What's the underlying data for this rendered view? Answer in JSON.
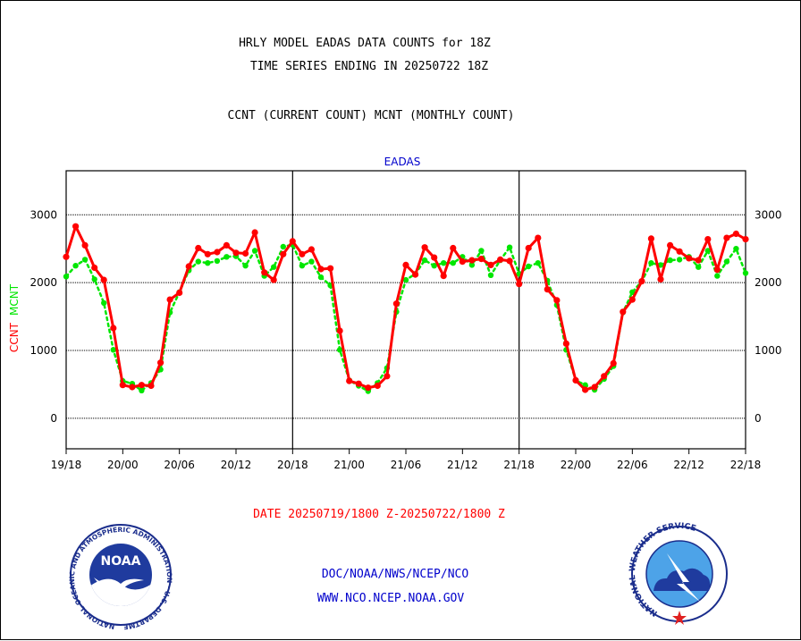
{
  "header": {
    "title_line1": "HRLY MODEL EADAS DATA COUNTS for 18Z",
    "title_line2": "TIME SERIES ENDING IN 20250722 18Z",
    "series_line": "CCNT (CURRENT COUNT) MCNT (MONTHLY COUNT)"
  },
  "footer": {
    "date_range": "DATE 20250719/1800 Z-20250722/1800 Z",
    "org_line": "DOC/NOAA/NWS/NCEP/NCO",
    "url_line": "WWW.NCO.NCEP.NOAA.GOV"
  },
  "logos": {
    "noaa_text": "NOAA",
    "noaa_ring": "NATIONAL OCEANIC AND ATMOSPHERIC ADMINISTRATION · U.S. DEPARTMENT OF COMMERCE ·",
    "nws_ring": "NATIONAL WEATHER SERVICE"
  },
  "colors": {
    "ccnt": "#ff0000",
    "mcnt": "#00e600",
    "label_blue": "#0000cc",
    "grid": "#000000"
  },
  "chart_data": {
    "type": "line",
    "title": "EADAS",
    "ylabel_series": [
      "CCNT",
      "MCNT"
    ],
    "ylim": [
      -450,
      3650
    ],
    "yticks": [
      0,
      1000,
      2000,
      3000
    ],
    "xlim": [
      0,
      72
    ],
    "xtick_labels": [
      "19/18",
      "20/00",
      "20/06",
      "20/12",
      "20/18",
      "21/00",
      "21/06",
      "21/12",
      "21/18",
      "22/00",
      "22/06",
      "22/12",
      "22/18"
    ],
    "xtick_hours": [
      0,
      6,
      12,
      18,
      24,
      30,
      36,
      42,
      48,
      54,
      60,
      66,
      72
    ],
    "day_dividers_hours": [
      24,
      48
    ],
    "grid": true,
    "series": [
      {
        "name": "CCNT",
        "color": "#ff0000",
        "values": [
          2380,
          2830,
          2550,
          2220,
          2040,
          1330,
          490,
          460,
          490,
          480,
          820,
          1750,
          1850,
          2240,
          2510,
          2420,
          2450,
          2550,
          2440,
          2430,
          2740,
          2150,
          2040,
          2420,
          2610,
          2420,
          2490,
          2200,
          2210,
          1290,
          550,
          510,
          450,
          480,
          620,
          1690,
          2260,
          2120,
          2520,
          2370,
          2100,
          2510,
          2310,
          2330,
          2350,
          2260,
          2340,
          2320,
          1980,
          2510,
          2660,
          1900,
          1740,
          1100,
          560,
          420,
          460,
          620,
          810,
          1570,
          1750,
          2020,
          2650,
          2050,
          2550,
          2460,
          2360,
          2330,
          2640,
          2190,
          2660,
          2720,
          2640
        ]
      },
      {
        "name": "MCNT",
        "color": "#00e600",
        "values": [
          2090,
          2250,
          2340,
          2050,
          1700,
          1010,
          550,
          510,
          410,
          520,
          720,
          1560,
          1860,
          2180,
          2310,
          2290,
          2320,
          2380,
          2390,
          2250,
          2470,
          2100,
          2230,
          2530,
          2560,
          2250,
          2310,
          2080,
          1960,
          1010,
          560,
          480,
          400,
          520,
          740,
          1570,
          2040,
          2130,
          2330,
          2250,
          2290,
          2290,
          2380,
          2260,
          2470,
          2110,
          2330,
          2520,
          2130,
          2240,
          2290,
          2030,
          1670,
          1010,
          560,
          490,
          420,
          580,
          770,
          1560,
          1860,
          2020,
          2290,
          2260,
          2330,
          2340,
          2380,
          2230,
          2470,
          2100,
          2310,
          2500,
          2140
        ]
      }
    ]
  }
}
